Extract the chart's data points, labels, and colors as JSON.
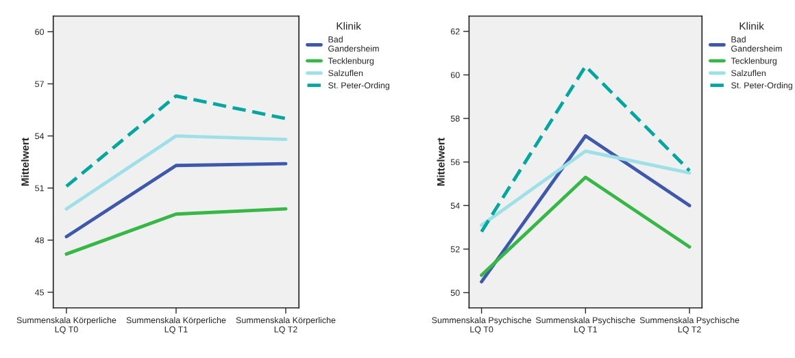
{
  "chart_data": [
    {
      "type": "line",
      "ylabel": "Mittelwert",
      "legend_title": "Klinik",
      "legend": "right",
      "categories": [
        "Summenskala Körperliche\nLQ T0",
        "Summenskala Körperliche\nLQ T1",
        "Summenskala Körperliche\nLQ T2"
      ],
      "ylim": [
        44.1,
        60.9
      ],
      "yticks": [
        45,
        48,
        51,
        54,
        57,
        60
      ],
      "series": [
        {
          "name": "Bad\nGandersheim",
          "color": "#3e58ac",
          "line_style": "solid",
          "values": [
            48.2,
            52.3,
            52.4
          ]
        },
        {
          "name": "Tecklenburg",
          "color": "#35b845",
          "line_style": "solid",
          "values": [
            47.2,
            49.5,
            49.8
          ]
        },
        {
          "name": "Salzuflen",
          "color": "#9ee0e8",
          "line_style": "solid",
          "values": [
            49.8,
            54.0,
            53.8
          ]
        },
        {
          "name": "St. Peter-Ording",
          "color": "#00a6a0",
          "line_style": "dashed",
          "values": [
            51.1,
            56.3,
            55.0
          ]
        }
      ]
    },
    {
      "type": "line",
      "ylabel": "Mittelwert",
      "legend_title": "Klinik",
      "legend": "right",
      "categories": [
        "Summenskala Psychische\nLQ T0",
        "Summenskala Psychische\nLQ T1",
        "Summenskala Psychische\nLQ T2"
      ],
      "ylim": [
        49.3,
        62.7
      ],
      "yticks": [
        50,
        52,
        54,
        56,
        58,
        60,
        62
      ],
      "series": [
        {
          "name": "Bad\nGandersheim",
          "color": "#3e58ac",
          "line_style": "solid",
          "values": [
            50.5,
            57.2,
            54.0
          ]
        },
        {
          "name": "Tecklenburg",
          "color": "#35b845",
          "line_style": "solid",
          "values": [
            50.8,
            55.3,
            52.1
          ]
        },
        {
          "name": "Salzuflen",
          "color": "#9ee0e8",
          "line_style": "solid",
          "values": [
            53.1,
            56.5,
            55.5
          ]
        },
        {
          "name": "St. Peter-Ording",
          "color": "#00a6a0",
          "line_style": "dashed",
          "values": [
            52.8,
            60.4,
            55.6
          ]
        }
      ]
    }
  ]
}
